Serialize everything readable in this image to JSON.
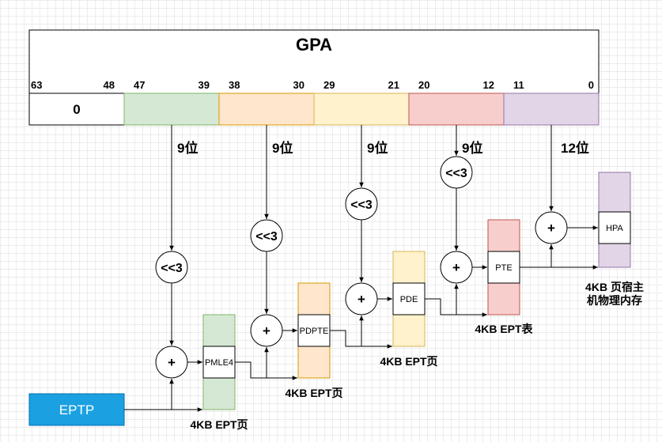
{
  "gpa": {
    "title": "GPA",
    "bits": [
      "63",
      "48",
      "47",
      "39",
      "38",
      "30",
      "29",
      "21",
      "20",
      "12",
      "11",
      "0"
    ],
    "top_field": "0"
  },
  "labels": {
    "bits9_a": "9位",
    "bits9_b": "9位",
    "bits9_c": "9位",
    "bits9_d": "9位",
    "bits12": "12位",
    "shift": "<<3",
    "plus": "+"
  },
  "entries": {
    "pmle4": "PMLE4",
    "pdpte": "PDPTE",
    "pde": "PDE",
    "pte": "PTE",
    "hpa": "HPA"
  },
  "captions": {
    "pml4_page": "4KB EPT页",
    "pdpt_page": "4KB EPT页",
    "pd_page": "4KB EPT页",
    "pt_table": "4KB EPT表",
    "host_mem_line1": "4KB 页宿主",
    "host_mem_line2": "机物理内存"
  },
  "eptp": {
    "label": "EPTP"
  },
  "colors": {
    "green": "#d5e8d4",
    "green_border": "#82b366",
    "orange": "#ffe6cc",
    "orange_border": "#d79b00",
    "yellow": "#fff2cc",
    "yellow_border": "#d6b656",
    "red": "#f8cecc",
    "red_border": "#b85450",
    "purple": "#e1d5e7",
    "purple_border": "#9673a6",
    "eptp": "#1ba1e2",
    "eptp_border": "#006eaf"
  }
}
